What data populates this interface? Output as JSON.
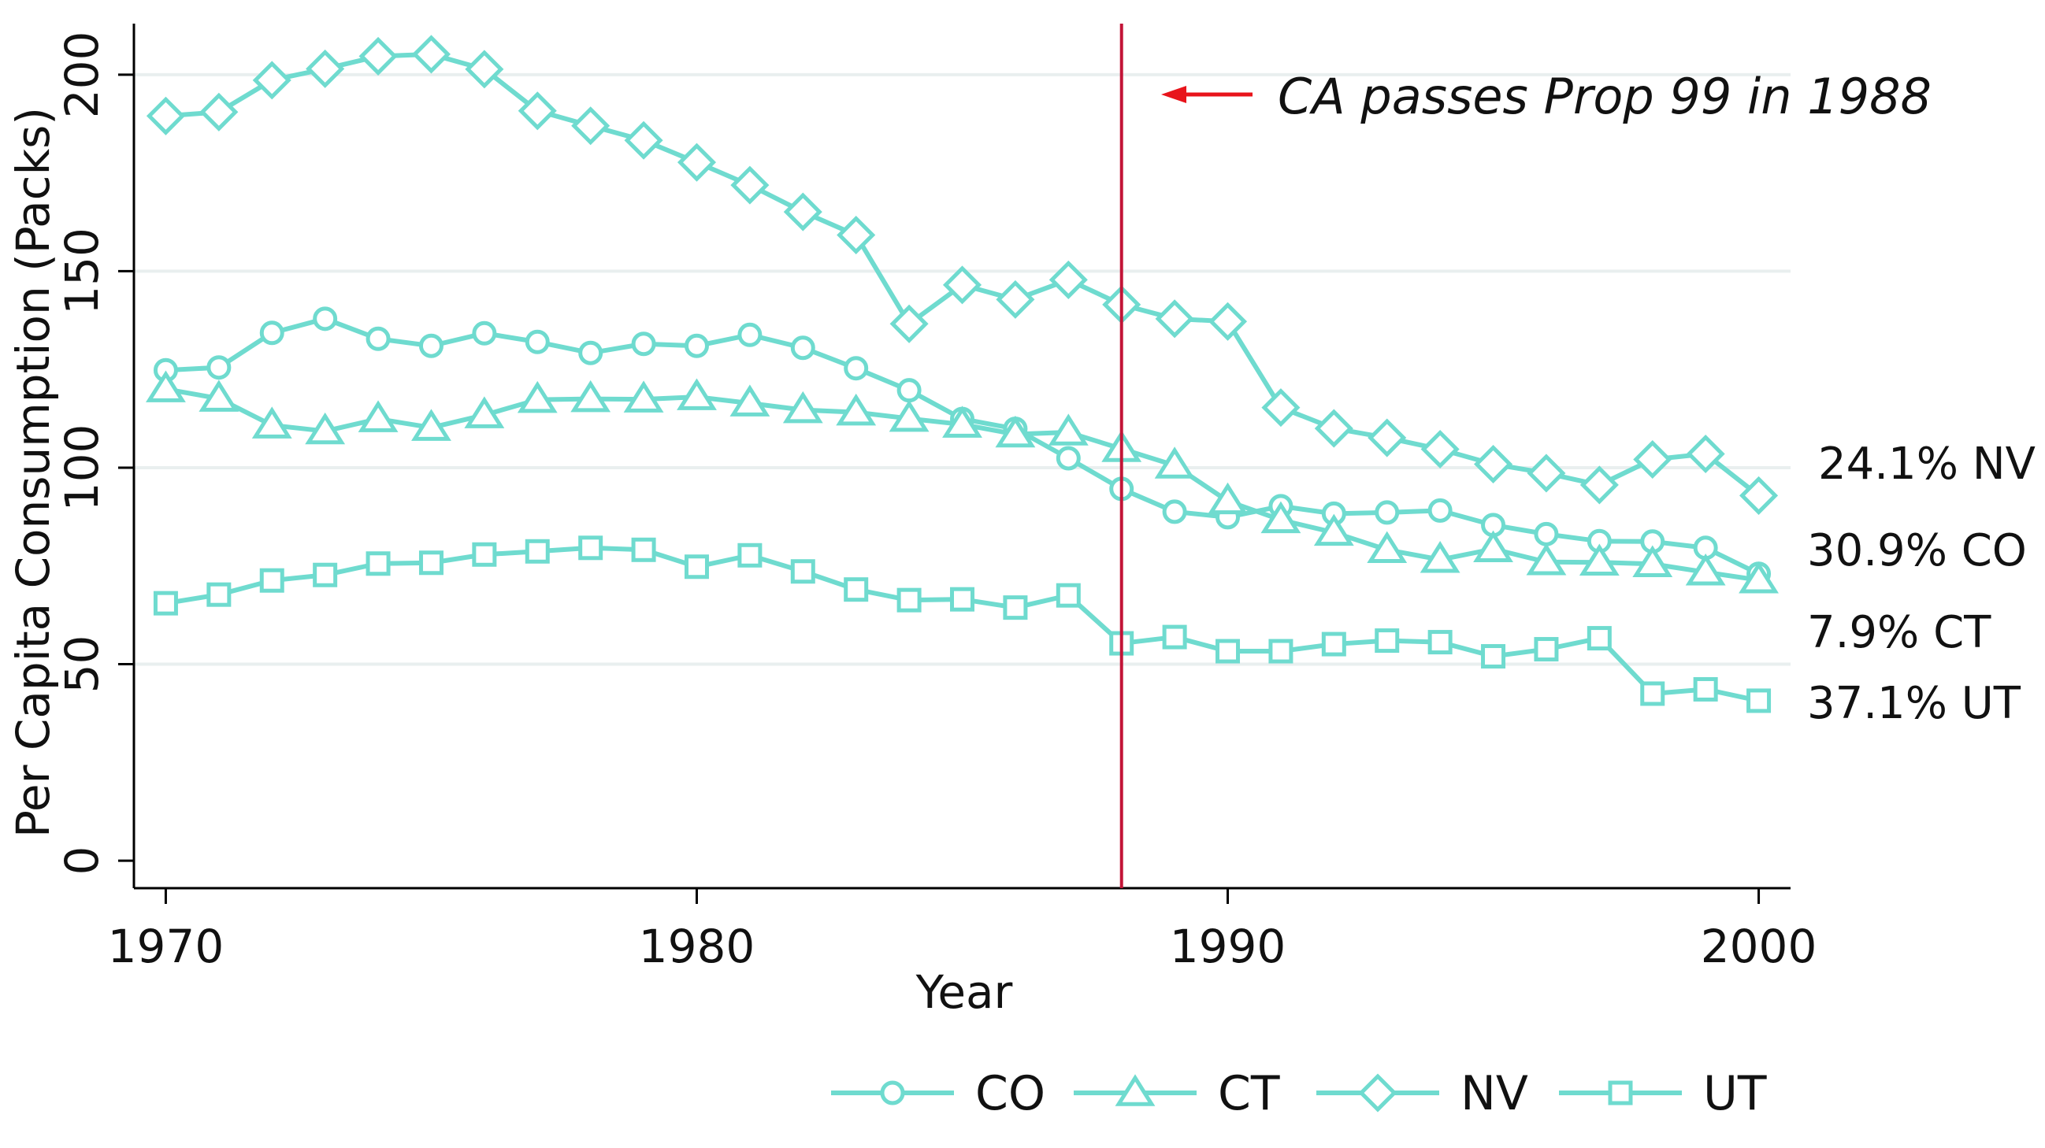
{
  "chart_data": {
    "type": "line",
    "xlabel": "Year",
    "ylabel": "Per Capita Consumption (Packs)",
    "xlim": [
      1969.4,
      2000.6
    ],
    "ylim": [
      -7,
      213
    ],
    "x_ticks": [
      "1970",
      "1980",
      "1990",
      "2000"
    ],
    "y_ticks": [
      "0",
      "50",
      "100",
      "150",
      "200"
    ],
    "grid": "horizontal",
    "legend": "bottom",
    "series_color": "#6fdbcf",
    "vline_color": "#c21437",
    "arrow_color": "#e8141b",
    "intervention": {
      "x": 1988,
      "text": "CA passes Prop 99 in 1988"
    },
    "x": [
      1970,
      1971,
      1972,
      1973,
      1974,
      1975,
      1976,
      1977,
      1978,
      1979,
      1980,
      1981,
      1982,
      1983,
      1984,
      1985,
      1986,
      1987,
      1988,
      1989,
      1990,
      1991,
      1992,
      1993,
      1994,
      1995,
      1996,
      1997,
      1998,
      1999,
      2000
    ],
    "series": [
      {
        "name": "CO",
        "marker": "circle",
        "end_label": "30.9% CO",
        "values": [
          124.8,
          125.5,
          134.3,
          137.9,
          132.8,
          131.0,
          134.2,
          132.0,
          129.2,
          131.5,
          131.0,
          133.8,
          130.5,
          125.3,
          119.7,
          112.4,
          109.9,
          102.4,
          94.6,
          88.8,
          87.4,
          90.2,
          88.3,
          88.6,
          89.1,
          85.4,
          83.1,
          81.3,
          81.2,
          79.6,
          73.0
        ]
      },
      {
        "name": "CT",
        "marker": "triangle",
        "end_label": "7.9% CT",
        "values": [
          120.0,
          117.6,
          110.8,
          109.3,
          112.4,
          110.2,
          113.4,
          117.3,
          117.5,
          117.4,
          118.0,
          116.4,
          114.7,
          114.1,
          112.5,
          111.0,
          108.5,
          109.0,
          104.8,
          100.6,
          91.5,
          86.7,
          83.5,
          79.1,
          76.6,
          79.3,
          76.0,
          75.9,
          75.5,
          73.4,
          71.4
        ]
      },
      {
        "name": "NV",
        "marker": "diamond",
        "end_label": "24.1% NV",
        "values": [
          189.5,
          190.5,
          198.6,
          201.5,
          204.7,
          205.2,
          201.4,
          190.8,
          187.0,
          183.3,
          177.7,
          171.9,
          165.1,
          159.2,
          136.6,
          146.5,
          142.8,
          147.8,
          141.5,
          137.9,
          137.2,
          115.3,
          110.0,
          107.6,
          104.7,
          100.9,
          98.6,
          95.6,
          102.1,
          103.5,
          92.9
        ]
      },
      {
        "name": "UT",
        "marker": "square",
        "end_label": "37.1% UT",
        "values": [
          65.5,
          67.7,
          71.3,
          72.7,
          75.6,
          75.8,
          77.9,
          78.7,
          79.6,
          79.1,
          74.8,
          77.7,
          73.6,
          69.0,
          66.3,
          66.5,
          64.4,
          67.5,
          55.3,
          56.9,
          53.3,
          53.3,
          55.1,
          56.0,
          55.6,
          52.0,
          53.8,
          56.6,
          42.5,
          43.6,
          40.7
        ]
      }
    ]
  }
}
